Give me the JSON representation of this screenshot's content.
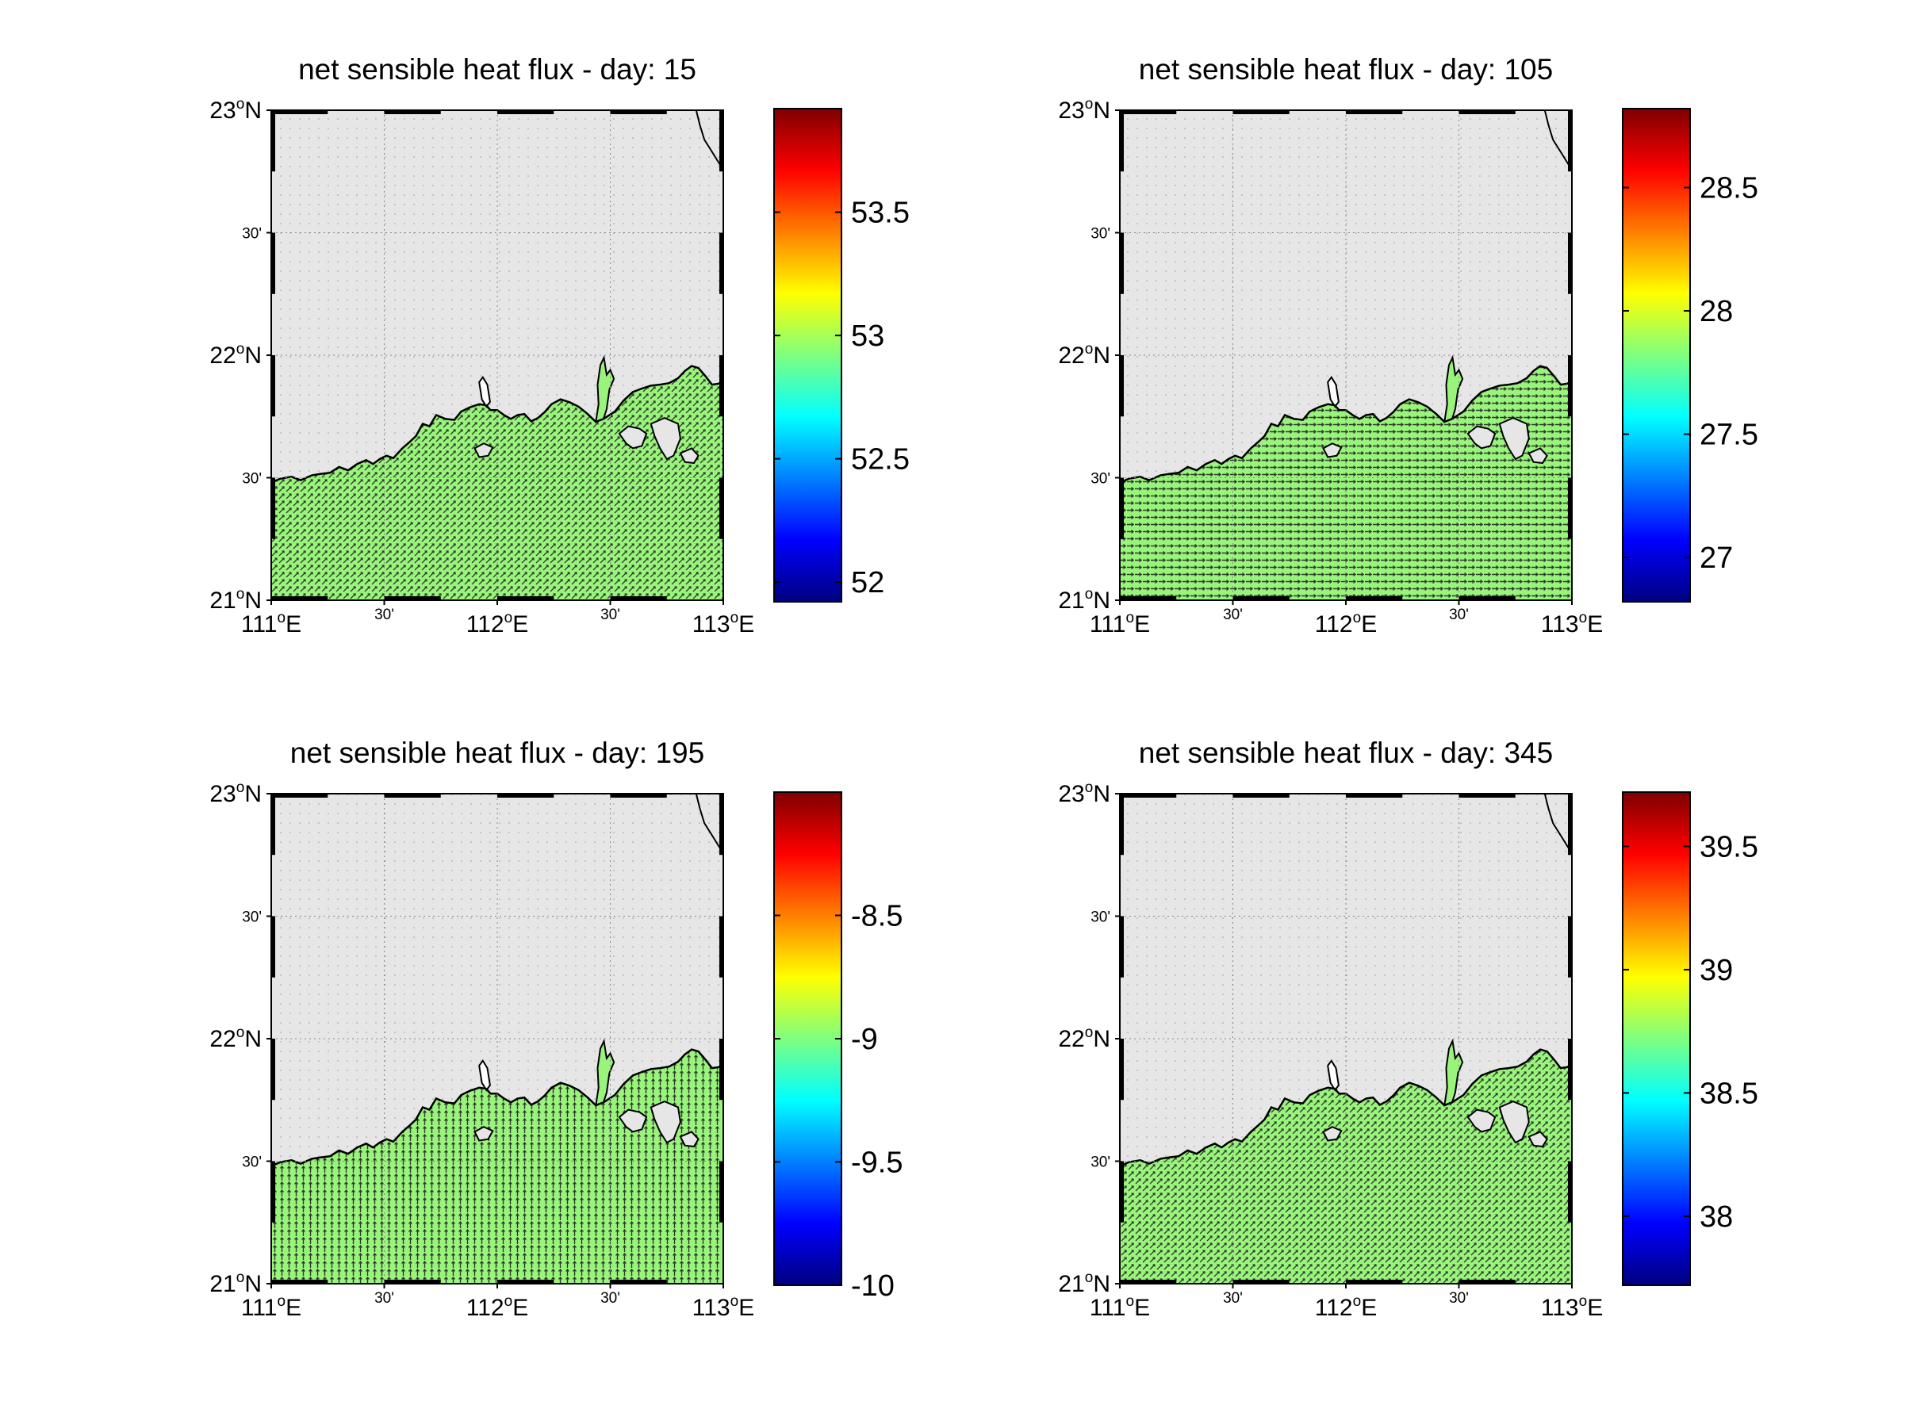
{
  "figure": {
    "panels": [
      {
        "title": "net sensible heat flux - day: 15",
        "colorbar_ticks": [
          "52",
          "52.5",
          "53",
          "53.5"
        ],
        "colorbar_range": [
          51.92,
          53.92
        ],
        "colorbar_tick_values": [
          52,
          52.5,
          53,
          53.5
        ],
        "arrow_direction": "diagonal"
      },
      {
        "title": "net sensible heat flux - day: 105",
        "colorbar_ticks": [
          "27",
          "27.5",
          "28",
          "28.5"
        ],
        "colorbar_range": [
          26.82,
          28.82
        ],
        "colorbar_tick_values": [
          27,
          27.5,
          28,
          28.5
        ],
        "arrow_direction": "horizontal"
      },
      {
        "title": "net sensible heat flux - day: 195",
        "colorbar_ticks": [
          "-10",
          "-9.5",
          "-9",
          "-8.5"
        ],
        "colorbar_range": [
          -10.0,
          -8.0
        ],
        "colorbar_tick_values": [
          -10,
          -9.5,
          -9,
          -8.5
        ],
        "arrow_direction": "vertical"
      },
      {
        "title": "net sensible heat flux - day: 345",
        "colorbar_ticks": [
          "38",
          "38.5",
          "39",
          "39.5"
        ],
        "colorbar_range": [
          37.72,
          39.72
        ],
        "colorbar_tick_values": [
          38,
          38.5,
          39,
          39.5
        ],
        "arrow_direction": "diagonal"
      }
    ],
    "lat_ticks": [
      {
        "deg": "23",
        "hem": "N",
        "minute": false
      },
      {
        "deg": "30'",
        "hem": "",
        "minute": true
      },
      {
        "deg": "22",
        "hem": "N",
        "minute": false
      },
      {
        "deg": "30'",
        "hem": "",
        "minute": true
      },
      {
        "deg": "21",
        "hem": "N",
        "minute": false
      }
    ],
    "lon_ticks": [
      {
        "deg": "111",
        "hem": "E",
        "minute": false
      },
      {
        "deg": "30'",
        "hem": "",
        "minute": true
      },
      {
        "deg": "112",
        "hem": "E",
        "minute": false
      },
      {
        "deg": "30'",
        "hem": "",
        "minute": true
      },
      {
        "deg": "113",
        "hem": "E",
        "minute": false
      }
    ],
    "colors": {
      "land": "#e6e6e6",
      "sea": "#99f47c",
      "coast": "#000000",
      "arrow": "#1a1a1a"
    }
  }
}
